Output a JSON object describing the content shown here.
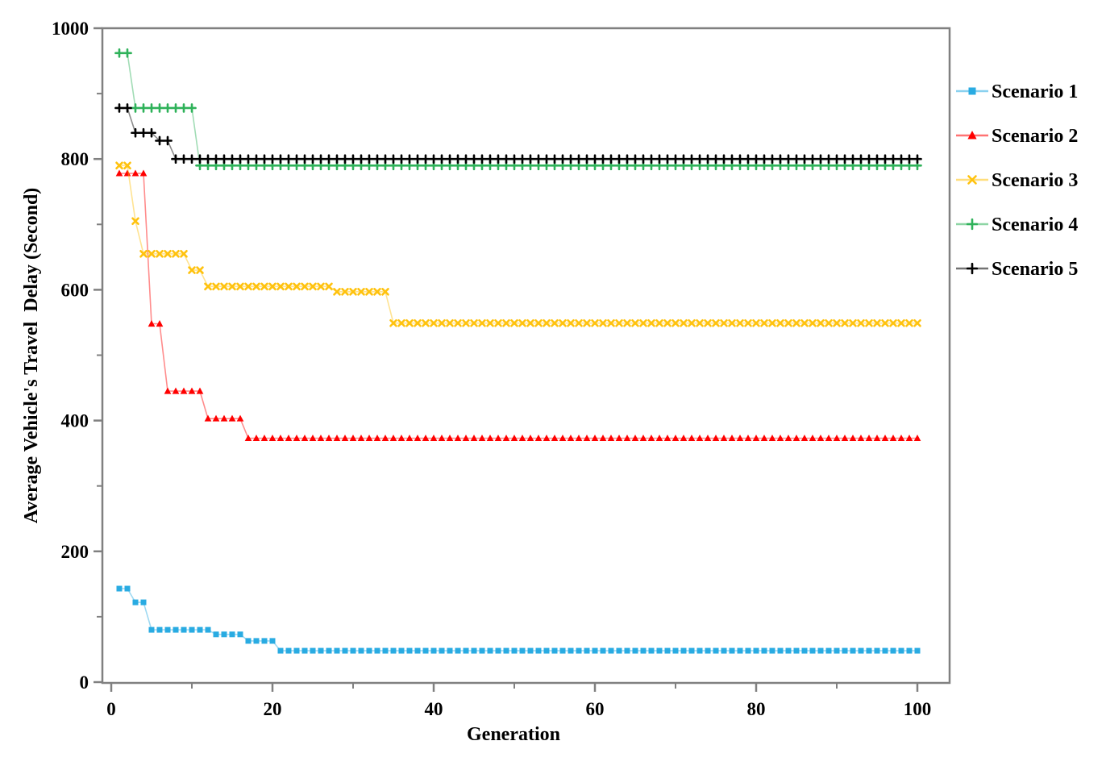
{
  "chart_data": {
    "type": "line",
    "title": "",
    "xlabel": "Generation",
    "ylabel": "Average Vehicle's Travel  Delay (Second)",
    "xlim": [
      0,
      104
    ],
    "ylim": [
      0,
      1000
    ],
    "x_ticks_major": [
      0,
      20,
      40,
      60,
      80,
      100
    ],
    "x_ticks_minor": [
      10,
      30,
      50,
      70,
      90
    ],
    "y_ticks_major": [
      0,
      200,
      400,
      600,
      800,
      1000
    ],
    "y_ticks_minor": [
      100,
      300,
      500,
      700,
      900
    ],
    "x_data_range": [
      1,
      100
    ],
    "grid": "off",
    "legend_position": "right-outside",
    "axis_color": "#808080",
    "text_color": "#000000",
    "series": [
      {
        "name": "Scenario 1",
        "color": "#29ABE2",
        "marker": "square",
        "segments": [
          [
            1,
            2,
            143
          ],
          [
            3,
            4,
            122
          ],
          [
            5,
            12,
            80
          ],
          [
            13,
            16,
            73
          ],
          [
            17,
            20,
            63
          ],
          [
            21,
            100,
            48
          ]
        ]
      },
      {
        "name": "Scenario 2",
        "color": "#FF0000",
        "marker": "triangle",
        "segments": [
          [
            1,
            4,
            778
          ],
          [
            5,
            6,
            548
          ],
          [
            7,
            11,
            445
          ],
          [
            12,
            16,
            403
          ],
          [
            17,
            100,
            373
          ]
        ]
      },
      {
        "name": "Scenario 3",
        "color": "#FFC20E",
        "marker": "x",
        "segments": [
          [
            1,
            2,
            790
          ],
          [
            3,
            3,
            705
          ],
          [
            4,
            9,
            655
          ],
          [
            10,
            11,
            630
          ],
          [
            12,
            27,
            605
          ],
          [
            28,
            34,
            597
          ],
          [
            35,
            100,
            549
          ]
        ]
      },
      {
        "name": "Scenario 4",
        "color": "#2FB25A",
        "marker": "plus",
        "segments": [
          [
            1,
            2,
            962
          ],
          [
            3,
            10,
            878
          ],
          [
            11,
            100,
            790
          ]
        ]
      },
      {
        "name": "Scenario 5",
        "color": "#000000",
        "marker": "plus",
        "segments": [
          [
            1,
            2,
            878
          ],
          [
            3,
            5,
            840
          ],
          [
            6,
            7,
            828
          ],
          [
            8,
            100,
            800
          ]
        ]
      }
    ]
  }
}
